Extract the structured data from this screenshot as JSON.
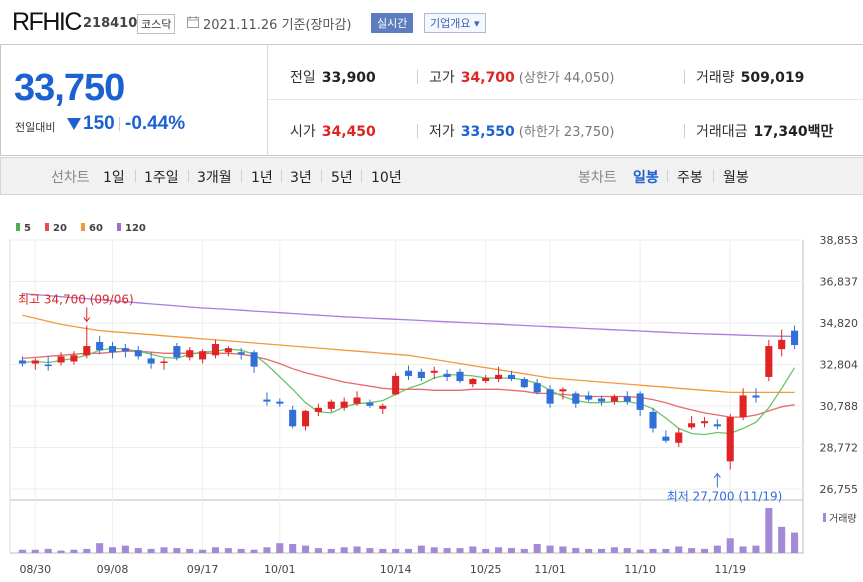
{
  "header": {
    "name": "RFHIC",
    "code": "218410",
    "market": "코스닥",
    "date": "2021.11.26 기준(장마감)",
    "realtime": "실시간",
    "company_info": "기업개요 ▾"
  },
  "summary": {
    "price": "33,750",
    "change_label": "전일대비",
    "change_value": "150",
    "change_pct": "-0.44%",
    "prev_label": "전일",
    "prev_value": "33,900",
    "high_label": "고가",
    "high_value": "34,700",
    "upper_limit": "(상한가 44,050)",
    "volume_label": "거래량",
    "volume_value": "509,019",
    "open_label": "시가",
    "open_value": "34,450",
    "low_label": "저가",
    "low_value": "33,550",
    "lower_limit": "(하한가 23,750)",
    "amount_label": "거래대금",
    "amount_value": "17,340",
    "amount_unit": "백만"
  },
  "nav": {
    "line_chart": "선차트",
    "periods": [
      "1일",
      "1주일",
      "3개월",
      "1년",
      "3년",
      "5년",
      "10년"
    ],
    "candle_chart": "봉차트",
    "candle_periods": [
      "일봉",
      "주봉",
      "월봉"
    ],
    "active_candle": "일봉"
  },
  "chart_data": {
    "type": "candlestick",
    "legend": [
      {
        "name": "5",
        "color": "#4caf50"
      },
      {
        "name": "20",
        "color": "#e84c4c"
      },
      {
        "name": "60",
        "color": "#f29a3a"
      },
      {
        "name": "120",
        "color": "#9b6fcf"
      }
    ],
    "y_ticks": [
      "38,853",
      "36,837",
      "34,820",
      "32,804",
      "30,788",
      "28,772",
      "26,755"
    ],
    "ylim": [
      26755,
      38853
    ],
    "x_ticks": [
      "08/30",
      "09/08",
      "09/17",
      "10/01",
      "10/14",
      "10/25",
      "11/01",
      "11/10",
      "11/19"
    ],
    "x_tick_index": [
      1,
      7,
      14,
      20,
      29,
      36,
      41,
      48,
      55
    ],
    "annotations": {
      "high_text": "최고 34,700 (09/06)",
      "high_index": 5,
      "high_value": 34700,
      "low_text": "최저 27,700 (11/19)",
      "low_index": 54,
      "low_value": 27700
    },
    "volume_label": "거래량",
    "candles": [
      {
        "o": 33000,
        "h": 33200,
        "l": 32700,
        "c": 32850
      },
      {
        "o": 32850,
        "h": 33100,
        "l": 32550,
        "c": 33000
      },
      {
        "o": 32800,
        "h": 33200,
        "l": 32500,
        "c": 32750
      },
      {
        "o": 32900,
        "h": 33400,
        "l": 32750,
        "c": 33200
      },
      {
        "o": 32950,
        "h": 33450,
        "l": 32800,
        "c": 33250
      },
      {
        "o": 33250,
        "h": 34700,
        "l": 33100,
        "c": 33700
      },
      {
        "o": 33900,
        "h": 34200,
        "l": 33300,
        "c": 33500
      },
      {
        "o": 33700,
        "h": 33900,
        "l": 33100,
        "c": 33400
      },
      {
        "o": 33600,
        "h": 33800,
        "l": 33150,
        "c": 33450
      },
      {
        "o": 33500,
        "h": 33700,
        "l": 33050,
        "c": 33200
      },
      {
        "o": 33100,
        "h": 33400,
        "l": 32600,
        "c": 32850
      },
      {
        "o": 32900,
        "h": 33100,
        "l": 32550,
        "c": 32950
      },
      {
        "o": 33700,
        "h": 33850,
        "l": 33000,
        "c": 33150
      },
      {
        "o": 33150,
        "h": 33650,
        "l": 33000,
        "c": 33500
      },
      {
        "o": 33050,
        "h": 33550,
        "l": 32850,
        "c": 33450
      },
      {
        "o": 33250,
        "h": 34000,
        "l": 33100,
        "c": 33800
      },
      {
        "o": 33400,
        "h": 33700,
        "l": 33200,
        "c": 33600
      },
      {
        "o": 33400,
        "h": 33600,
        "l": 33050,
        "c": 33300
      },
      {
        "o": 33400,
        "h": 33500,
        "l": 32400,
        "c": 32700
      },
      {
        "o": 31100,
        "h": 31450,
        "l": 30800,
        "c": 31000
      },
      {
        "o": 31000,
        "h": 31150,
        "l": 30750,
        "c": 30900
      },
      {
        "o": 30600,
        "h": 30800,
        "l": 29700,
        "c": 29800
      },
      {
        "o": 29800,
        "h": 30600,
        "l": 29600,
        "c": 30550
      },
      {
        "o": 30500,
        "h": 30900,
        "l": 30300,
        "c": 30700
      },
      {
        "o": 30650,
        "h": 31100,
        "l": 30500,
        "c": 31000
      },
      {
        "o": 30700,
        "h": 31200,
        "l": 30550,
        "c": 31000
      },
      {
        "o": 30900,
        "h": 31500,
        "l": 30800,
        "c": 31200
      },
      {
        "o": 30950,
        "h": 31100,
        "l": 30700,
        "c": 30800
      },
      {
        "o": 30650,
        "h": 30900,
        "l": 30400,
        "c": 30800
      },
      {
        "o": 31350,
        "h": 32400,
        "l": 31300,
        "c": 32250
      },
      {
        "o": 32500,
        "h": 32750,
        "l": 32050,
        "c": 32250
      },
      {
        "o": 32450,
        "h": 32600,
        "l": 32000,
        "c": 32150
      },
      {
        "o": 32400,
        "h": 32700,
        "l": 32100,
        "c": 32500
      },
      {
        "o": 32350,
        "h": 32550,
        "l": 32000,
        "c": 32200
      },
      {
        "o": 32450,
        "h": 32600,
        "l": 31900,
        "c": 32000
      },
      {
        "o": 31850,
        "h": 32150,
        "l": 31700,
        "c": 32100
      },
      {
        "o": 32000,
        "h": 32300,
        "l": 31900,
        "c": 32150
      },
      {
        "o": 32100,
        "h": 32700,
        "l": 31950,
        "c": 32300
      },
      {
        "o": 32300,
        "h": 32500,
        "l": 32000,
        "c": 32100
      },
      {
        "o": 32100,
        "h": 32200,
        "l": 31650,
        "c": 31700
      },
      {
        "o": 31900,
        "h": 32100,
        "l": 31350,
        "c": 31450
      },
      {
        "o": 31600,
        "h": 31800,
        "l": 30700,
        "c": 30900
      },
      {
        "o": 31500,
        "h": 31700,
        "l": 31100,
        "c": 31600
      },
      {
        "o": 31400,
        "h": 31500,
        "l": 30700,
        "c": 30900
      },
      {
        "o": 31300,
        "h": 31500,
        "l": 31000,
        "c": 31100
      },
      {
        "o": 31150,
        "h": 31300,
        "l": 30800,
        "c": 31000
      },
      {
        "o": 31000,
        "h": 31350,
        "l": 30850,
        "c": 31250
      },
      {
        "o": 31250,
        "h": 31500,
        "l": 30850,
        "c": 31000
      },
      {
        "o": 31400,
        "h": 31500,
        "l": 30300,
        "c": 30600
      },
      {
        "o": 30500,
        "h": 30700,
        "l": 29500,
        "c": 29700
      },
      {
        "o": 29300,
        "h": 29600,
        "l": 29000,
        "c": 29100
      },
      {
        "o": 29000,
        "h": 29700,
        "l": 28800,
        "c": 29500
      },
      {
        "o": 29750,
        "h": 30300,
        "l": 29650,
        "c": 29950
      },
      {
        "o": 29950,
        "h": 30250,
        "l": 29750,
        "c": 30050
      },
      {
        "o": 29900,
        "h": 30150,
        "l": 29650,
        "c": 29800
      },
      {
        "o": 28100,
        "h": 30400,
        "l": 27700,
        "c": 30250
      },
      {
        "o": 30250,
        "h": 31650,
        "l": 30100,
        "c": 31300
      },
      {
        "o": 31300,
        "h": 31650,
        "l": 30950,
        "c": 31200
      },
      {
        "o": 32200,
        "h": 34000,
        "l": 32000,
        "c": 33700
      },
      {
        "o": 33550,
        "h": 34500,
        "l": 33200,
        "c": 34000
      },
      {
        "o": 34450,
        "h": 34700,
        "l": 33550,
        "c": 33750
      }
    ],
    "volume": [
      4,
      4,
      5,
      3,
      4,
      5,
      12,
      7,
      9,
      6,
      5,
      7,
      6,
      5,
      4,
      7,
      6,
      5,
      4,
      7,
      12,
      11,
      9,
      6,
      5,
      7,
      8,
      6,
      5,
      5,
      5,
      9,
      7,
      6,
      6,
      8,
      5,
      7,
      6,
      5,
      11,
      9,
      8,
      6,
      5,
      5,
      7,
      6,
      4,
      5,
      5,
      8,
      6,
      5,
      9,
      18,
      8,
      9,
      55,
      32,
      25
    ],
    "ma5": [
      32900,
      32950,
      32900,
      33000,
      33100,
      33250,
      33500,
      33600,
      33550,
      33450,
      33300,
      33150,
      33100,
      33300,
      33400,
      33450,
      33550,
      33500,
      33300,
      32800,
      32200,
      31600,
      30950,
      30500,
      30450,
      30750,
      30900,
      30950,
      31050,
      31350,
      31650,
      31850,
      32150,
      32300,
      32300,
      32250,
      32150,
      32150,
      32150,
      32050,
      31900,
      31550,
      31250,
      31050,
      30950,
      30950,
      31000,
      31000,
      30900,
      30650,
      30200,
      29700,
      29450,
      29400,
      29500,
      29450,
      29700,
      30000,
      30700,
      31650,
      32650
    ],
    "ma20": [
      33100,
      33150,
      33200,
      33250,
      33300,
      33350,
      33350,
      33400,
      33450,
      33450,
      33400,
      33350,
      33350,
      33350,
      33350,
      33350,
      33350,
      33300,
      33200,
      33050,
      32850,
      32600,
      32400,
      32250,
      32100,
      31950,
      31850,
      31750,
      31650,
      31600,
      31600,
      31600,
      31550,
      31550,
      31550,
      31600,
      31600,
      31600,
      31550,
      31500,
      31400,
      31400,
      31350,
      31300,
      31250,
      31250,
      31250,
      31250,
      31200,
      31100,
      30950,
      30750,
      30600,
      30450,
      30350,
      30250,
      30250,
      30350,
      30550,
      30750,
      30850
    ],
    "ma60": [
      35200,
      35050,
      34900,
      34750,
      34650,
      34550,
      34450,
      34400,
      34350,
      34300,
      34250,
      34200,
      34150,
      34100,
      34050,
      34000,
      33950,
      33900,
      33850,
      33800,
      33750,
      33700,
      33650,
      33600,
      33550,
      33500,
      33450,
      33400,
      33350,
      33300,
      33250,
      33150,
      33050,
      32950,
      32850,
      32750,
      32650,
      32550,
      32450,
      32350,
      32250,
      32150,
      32100,
      32050,
      32000,
      31950,
      31900,
      31850,
      31800,
      31750,
      31700,
      31650,
      31600,
      31550,
      31500,
      31450,
      31450,
      31450,
      31450,
      31450,
      31450
    ],
    "ma120": [
      36250,
      36200,
      36150,
      36100,
      36050,
      36000,
      35950,
      35900,
      35850,
      35800,
      35750,
      35700,
      35650,
      35600,
      35550,
      35520,
      35480,
      35440,
      35400,
      35360,
      35320,
      35280,
      35240,
      35200,
      35160,
      35120,
      35090,
      35060,
      35030,
      35000,
      34970,
      34940,
      34910,
      34880,
      34850,
      34820,
      34790,
      34760,
      34730,
      34700,
      34670,
      34640,
      34610,
      34580,
      34550,
      34520,
      34490,
      34460,
      34430,
      34400,
      34370,
      34340,
      34310,
      34290,
      34270,
      34250,
      34230,
      34210,
      34190,
      34180,
      34170
    ]
  }
}
